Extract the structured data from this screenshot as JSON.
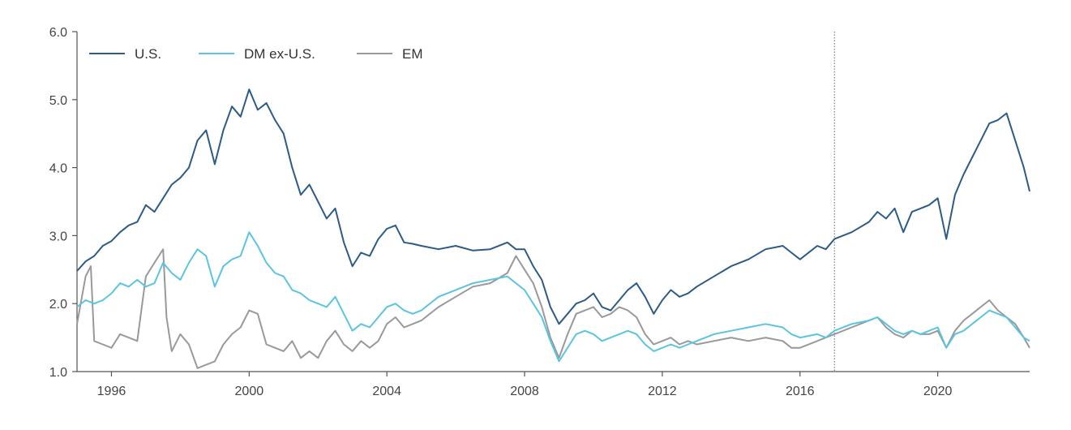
{
  "chart_data": {
    "type": "line",
    "title": "",
    "xlabel": "",
    "ylabel": "",
    "xlim": [
      1995.0,
      2022.67
    ],
    "ylim": [
      1.0,
      6.0
    ],
    "yticks": [
      "1.0",
      "2.0",
      "3.0",
      "4.0",
      "5.0",
      "6.0"
    ],
    "xticks": [
      "1996",
      "2000",
      "2004",
      "2008",
      "2012",
      "2016",
      "2020"
    ],
    "grid": false,
    "legend": "top-left",
    "vline_x": 2017.0,
    "colors": {
      "U.S.": "#2b5b86",
      "DM ex-U.S.": "#5bc4e1",
      "EM": "#999999"
    },
    "series": [
      {
        "name": "U.S.",
        "points": [
          [
            1995.0,
            2.48
          ],
          [
            1995.25,
            2.62
          ],
          [
            1995.5,
            2.7
          ],
          [
            1995.75,
            2.85
          ],
          [
            1996.0,
            2.92
          ],
          [
            1996.25,
            3.05
          ],
          [
            1996.5,
            3.15
          ],
          [
            1996.75,
            3.2
          ],
          [
            1997.0,
            3.45
          ],
          [
            1997.25,
            3.35
          ],
          [
            1997.5,
            3.55
          ],
          [
            1997.75,
            3.75
          ],
          [
            1998.0,
            3.85
          ],
          [
            1998.25,
            4.0
          ],
          [
            1998.5,
            4.4
          ],
          [
            1998.75,
            4.55
          ],
          [
            1999.0,
            4.05
          ],
          [
            1999.25,
            4.55
          ],
          [
            1999.5,
            4.9
          ],
          [
            1999.75,
            4.75
          ],
          [
            2000.0,
            5.15
          ],
          [
            2000.25,
            4.85
          ],
          [
            2000.5,
            4.95
          ],
          [
            2000.75,
            4.7
          ],
          [
            2001.0,
            4.5
          ],
          [
            2001.25,
            4.0
          ],
          [
            2001.5,
            3.6
          ],
          [
            2001.75,
            3.75
          ],
          [
            2002.0,
            3.5
          ],
          [
            2002.25,
            3.25
          ],
          [
            2002.5,
            3.4
          ],
          [
            2002.75,
            2.9
          ],
          [
            2003.0,
            2.55
          ],
          [
            2003.25,
            2.75
          ],
          [
            2003.5,
            2.7
          ],
          [
            2003.75,
            2.95
          ],
          [
            2004.0,
            3.1
          ],
          [
            2004.25,
            3.15
          ],
          [
            2004.5,
            2.9
          ],
          [
            2004.75,
            2.88
          ],
          [
            2005.0,
            2.85
          ],
          [
            2005.5,
            2.8
          ],
          [
            2006.0,
            2.85
          ],
          [
            2006.5,
            2.78
          ],
          [
            2007.0,
            2.8
          ],
          [
            2007.5,
            2.9
          ],
          [
            2007.75,
            2.8
          ],
          [
            2008.0,
            2.8
          ],
          [
            2008.25,
            2.55
          ],
          [
            2008.5,
            2.35
          ],
          [
            2008.75,
            1.95
          ],
          [
            2009.0,
            1.7
          ],
          [
            2009.25,
            1.85
          ],
          [
            2009.5,
            2.0
          ],
          [
            2009.75,
            2.05
          ],
          [
            2010.0,
            2.15
          ],
          [
            2010.25,
            1.95
          ],
          [
            2010.5,
            1.9
          ],
          [
            2010.75,
            2.05
          ],
          [
            2011.0,
            2.2
          ],
          [
            2011.25,
            2.3
          ],
          [
            2011.5,
            2.1
          ],
          [
            2011.75,
            1.85
          ],
          [
            2012.0,
            2.05
          ],
          [
            2012.25,
            2.2
          ],
          [
            2012.5,
            2.1
          ],
          [
            2012.75,
            2.15
          ],
          [
            2013.0,
            2.25
          ],
          [
            2013.5,
            2.4
          ],
          [
            2014.0,
            2.55
          ],
          [
            2014.5,
            2.65
          ],
          [
            2015.0,
            2.8
          ],
          [
            2015.5,
            2.85
          ],
          [
            2015.75,
            2.75
          ],
          [
            2016.0,
            2.65
          ],
          [
            2016.5,
            2.85
          ],
          [
            2016.75,
            2.8
          ],
          [
            2017.0,
            2.95
          ],
          [
            2017.5,
            3.05
          ],
          [
            2018.0,
            3.2
          ],
          [
            2018.25,
            3.35
          ],
          [
            2018.5,
            3.25
          ],
          [
            2018.75,
            3.4
          ],
          [
            2019.0,
            3.05
          ],
          [
            2019.25,
            3.35
          ],
          [
            2019.5,
            3.4
          ],
          [
            2019.75,
            3.45
          ],
          [
            2020.0,
            3.55
          ],
          [
            2020.25,
            2.95
          ],
          [
            2020.5,
            3.6
          ],
          [
            2020.75,
            3.9
          ],
          [
            2021.0,
            4.15
          ],
          [
            2021.25,
            4.4
          ],
          [
            2021.5,
            4.65
          ],
          [
            2021.75,
            4.7
          ],
          [
            2022.0,
            4.8
          ],
          [
            2022.25,
            4.4
          ],
          [
            2022.5,
            4.0
          ],
          [
            2022.67,
            3.65
          ]
        ]
      },
      {
        "name": "DM ex-U.S.",
        "points": [
          [
            1995.0,
            1.95
          ],
          [
            1995.25,
            2.05
          ],
          [
            1995.5,
            2.0
          ],
          [
            1995.75,
            2.05
          ],
          [
            1996.0,
            2.15
          ],
          [
            1996.25,
            2.3
          ],
          [
            1996.5,
            2.25
          ],
          [
            1996.75,
            2.35
          ],
          [
            1997.0,
            2.25
          ],
          [
            1997.25,
            2.3
          ],
          [
            1997.5,
            2.6
          ],
          [
            1997.75,
            2.45
          ],
          [
            1998.0,
            2.35
          ],
          [
            1998.25,
            2.6
          ],
          [
            1998.5,
            2.8
          ],
          [
            1998.75,
            2.7
          ],
          [
            1999.0,
            2.25
          ],
          [
            1999.25,
            2.55
          ],
          [
            1999.5,
            2.65
          ],
          [
            1999.75,
            2.7
          ],
          [
            2000.0,
            3.05
          ],
          [
            2000.25,
            2.85
          ],
          [
            2000.5,
            2.6
          ],
          [
            2000.75,
            2.45
          ],
          [
            2001.0,
            2.4
          ],
          [
            2001.25,
            2.2
          ],
          [
            2001.5,
            2.15
          ],
          [
            2001.75,
            2.05
          ],
          [
            2002.0,
            2.0
          ],
          [
            2002.25,
            1.95
          ],
          [
            2002.5,
            2.1
          ],
          [
            2002.75,
            1.85
          ],
          [
            2003.0,
            1.6
          ],
          [
            2003.25,
            1.7
          ],
          [
            2003.5,
            1.65
          ],
          [
            2003.75,
            1.8
          ],
          [
            2004.0,
            1.95
          ],
          [
            2004.25,
            2.0
          ],
          [
            2004.5,
            1.9
          ],
          [
            2004.75,
            1.85
          ],
          [
            2005.0,
            1.9
          ],
          [
            2005.5,
            2.1
          ],
          [
            2006.0,
            2.2
          ],
          [
            2006.5,
            2.3
          ],
          [
            2007.0,
            2.35
          ],
          [
            2007.5,
            2.4
          ],
          [
            2007.75,
            2.3
          ],
          [
            2008.0,
            2.2
          ],
          [
            2008.25,
            2.0
          ],
          [
            2008.5,
            1.8
          ],
          [
            2008.75,
            1.45
          ],
          [
            2009.0,
            1.15
          ],
          [
            2009.25,
            1.35
          ],
          [
            2009.5,
            1.55
          ],
          [
            2009.75,
            1.6
          ],
          [
            2010.0,
            1.55
          ],
          [
            2010.25,
            1.45
          ],
          [
            2010.5,
            1.5
          ],
          [
            2010.75,
            1.55
          ],
          [
            2011.0,
            1.6
          ],
          [
            2011.25,
            1.55
          ],
          [
            2011.5,
            1.4
          ],
          [
            2011.75,
            1.3
          ],
          [
            2012.0,
            1.35
          ],
          [
            2012.25,
            1.4
          ],
          [
            2012.5,
            1.35
          ],
          [
            2012.75,
            1.4
          ],
          [
            2013.0,
            1.45
          ],
          [
            2013.5,
            1.55
          ],
          [
            2014.0,
            1.6
          ],
          [
            2014.5,
            1.65
          ],
          [
            2015.0,
            1.7
          ],
          [
            2015.5,
            1.65
          ],
          [
            2015.75,
            1.55
          ],
          [
            2016.0,
            1.5
          ],
          [
            2016.5,
            1.55
          ],
          [
            2016.75,
            1.5
          ],
          [
            2017.0,
            1.6
          ],
          [
            2017.5,
            1.7
          ],
          [
            2018.0,
            1.75
          ],
          [
            2018.25,
            1.8
          ],
          [
            2018.5,
            1.7
          ],
          [
            2018.75,
            1.6
          ],
          [
            2019.0,
            1.55
          ],
          [
            2019.25,
            1.6
          ],
          [
            2019.5,
            1.55
          ],
          [
            2019.75,
            1.6
          ],
          [
            2020.0,
            1.65
          ],
          [
            2020.25,
            1.35
          ],
          [
            2020.5,
            1.55
          ],
          [
            2020.75,
            1.6
          ],
          [
            2021.0,
            1.7
          ],
          [
            2021.25,
            1.8
          ],
          [
            2021.5,
            1.9
          ],
          [
            2021.75,
            1.85
          ],
          [
            2022.0,
            1.8
          ],
          [
            2022.25,
            1.65
          ],
          [
            2022.5,
            1.5
          ],
          [
            2022.67,
            1.45
          ]
        ]
      },
      {
        "name": "EM",
        "points": [
          [
            1995.0,
            1.7
          ],
          [
            1995.25,
            2.4
          ],
          [
            1995.4,
            2.55
          ],
          [
            1995.5,
            1.45
          ],
          [
            1995.75,
            1.4
          ],
          [
            1996.0,
            1.35
          ],
          [
            1996.25,
            1.55
          ],
          [
            1996.5,
            1.5
          ],
          [
            1996.75,
            1.45
          ],
          [
            1997.0,
            2.4
          ],
          [
            1997.25,
            2.6
          ],
          [
            1997.5,
            2.8
          ],
          [
            1997.6,
            1.8
          ],
          [
            1997.75,
            1.3
          ],
          [
            1998.0,
            1.55
          ],
          [
            1998.25,
            1.4
          ],
          [
            1998.5,
            1.05
          ],
          [
            1998.75,
            1.1
          ],
          [
            1999.0,
            1.15
          ],
          [
            1999.25,
            1.4
          ],
          [
            1999.5,
            1.55
          ],
          [
            1999.75,
            1.65
          ],
          [
            2000.0,
            1.9
          ],
          [
            2000.25,
            1.85
          ],
          [
            2000.5,
            1.4
          ],
          [
            2000.75,
            1.35
          ],
          [
            2001.0,
            1.3
          ],
          [
            2001.25,
            1.45
          ],
          [
            2001.5,
            1.2
          ],
          [
            2001.75,
            1.3
          ],
          [
            2002.0,
            1.2
          ],
          [
            2002.25,
            1.45
          ],
          [
            2002.5,
            1.6
          ],
          [
            2002.75,
            1.4
          ],
          [
            2003.0,
            1.3
          ],
          [
            2003.25,
            1.45
          ],
          [
            2003.5,
            1.35
          ],
          [
            2003.75,
            1.45
          ],
          [
            2004.0,
            1.7
          ],
          [
            2004.25,
            1.8
          ],
          [
            2004.5,
            1.65
          ],
          [
            2004.75,
            1.7
          ],
          [
            2005.0,
            1.75
          ],
          [
            2005.5,
            1.95
          ],
          [
            2006.0,
            2.1
          ],
          [
            2006.5,
            2.25
          ],
          [
            2007.0,
            2.3
          ],
          [
            2007.5,
            2.45
          ],
          [
            2007.75,
            2.7
          ],
          [
            2008.0,
            2.5
          ],
          [
            2008.25,
            2.3
          ],
          [
            2008.5,
            1.95
          ],
          [
            2008.75,
            1.5
          ],
          [
            2009.0,
            1.2
          ],
          [
            2009.25,
            1.55
          ],
          [
            2009.5,
            1.85
          ],
          [
            2009.75,
            1.9
          ],
          [
            2010.0,
            1.95
          ],
          [
            2010.25,
            1.8
          ],
          [
            2010.5,
            1.85
          ],
          [
            2010.75,
            1.95
          ],
          [
            2011.0,
            1.9
          ],
          [
            2011.25,
            1.8
          ],
          [
            2011.5,
            1.55
          ],
          [
            2011.75,
            1.4
          ],
          [
            2012.0,
            1.45
          ],
          [
            2012.25,
            1.5
          ],
          [
            2012.5,
            1.4
          ],
          [
            2012.75,
            1.45
          ],
          [
            2013.0,
            1.4
          ],
          [
            2013.5,
            1.45
          ],
          [
            2014.0,
            1.5
          ],
          [
            2014.5,
            1.45
          ],
          [
            2015.0,
            1.5
          ],
          [
            2015.5,
            1.45
          ],
          [
            2015.75,
            1.35
          ],
          [
            2016.0,
            1.35
          ],
          [
            2016.5,
            1.45
          ],
          [
            2016.75,
            1.5
          ],
          [
            2017.0,
            1.55
          ],
          [
            2017.5,
            1.65
          ],
          [
            2018.0,
            1.75
          ],
          [
            2018.25,
            1.8
          ],
          [
            2018.5,
            1.65
          ],
          [
            2018.75,
            1.55
          ],
          [
            2019.0,
            1.5
          ],
          [
            2019.25,
            1.6
          ],
          [
            2019.5,
            1.55
          ],
          [
            2019.75,
            1.55
          ],
          [
            2020.0,
            1.6
          ],
          [
            2020.25,
            1.35
          ],
          [
            2020.5,
            1.6
          ],
          [
            2020.75,
            1.75
          ],
          [
            2021.0,
            1.85
          ],
          [
            2021.25,
            1.95
          ],
          [
            2021.5,
            2.05
          ],
          [
            2021.75,
            1.9
          ],
          [
            2022.0,
            1.8
          ],
          [
            2022.25,
            1.7
          ],
          [
            2022.5,
            1.5
          ],
          [
            2022.67,
            1.35
          ]
        ]
      }
    ]
  }
}
